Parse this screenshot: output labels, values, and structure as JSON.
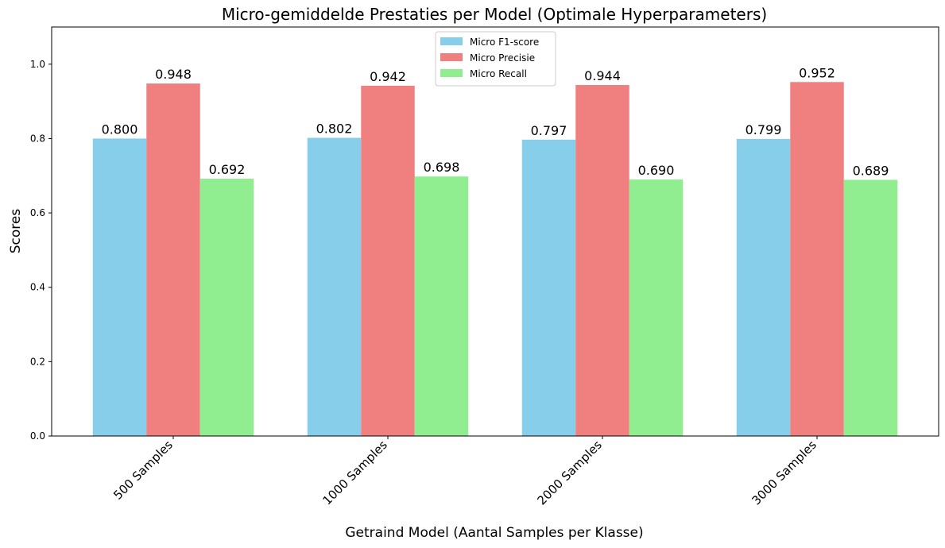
{
  "chart_data": {
    "type": "bar",
    "title": "Micro-gemiddelde Prestaties per Model (Optimale Hyperparameters)",
    "xlabel": "Getraind Model (Aantal Samples per Klasse)",
    "ylabel": "Scores",
    "ylim": [
      0,
      1.1
    ],
    "yticks": [
      "0.0",
      "0.2",
      "0.4",
      "0.6",
      "0.8",
      "1.0"
    ],
    "ytick_values": [
      0,
      0.2,
      0.4,
      0.6,
      0.8,
      1.0
    ],
    "categories": [
      "500 Samples",
      "1000 Samples",
      "2000 Samples",
      "3000 Samples"
    ],
    "series": [
      {
        "name": "Micro F1-score",
        "color": "#87CEEB",
        "values": [
          0.8,
          0.802,
          0.797,
          0.799
        ],
        "labels": [
          "0.800",
          "0.802",
          "0.797",
          "0.799"
        ]
      },
      {
        "name": "Micro Precisie",
        "color": "#F08080",
        "values": [
          0.948,
          0.942,
          0.944,
          0.952
        ],
        "labels": [
          "0.948",
          "0.942",
          "0.944",
          "0.952"
        ]
      },
      {
        "name": "Micro Recall",
        "color": "#90EE90",
        "values": [
          0.692,
          0.698,
          0.69,
          0.689
        ],
        "labels": [
          "0.692",
          "0.698",
          "0.690",
          "0.689"
        ]
      }
    ],
    "legend": "top-center",
    "grid": false
  }
}
